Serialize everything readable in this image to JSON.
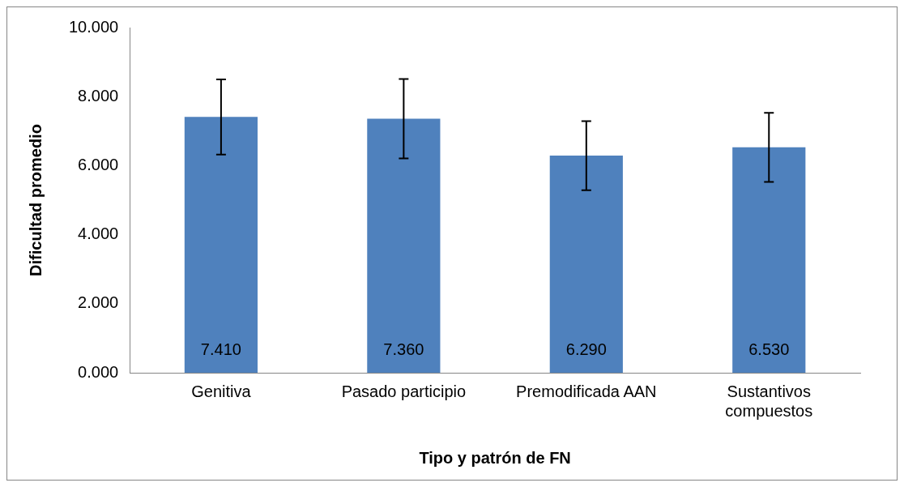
{
  "chart_data": {
    "type": "bar",
    "xlabel": "Tipo y patrón de FN",
    "ylabel": "Dificultad promedio",
    "categories": [
      "Genitiva",
      "Pasado participio",
      "Premodificada AAN",
      "Sustantivos compuestos"
    ],
    "values": [
      7.41,
      7.36,
      6.29,
      6.53
    ],
    "value_labels": [
      "7.410",
      "7.360",
      "6.290",
      "6.530"
    ],
    "errors": [
      1.09,
      1.15,
      1.0,
      1.0
    ],
    "color": "#4f81bd",
    "ylim": [
      0,
      10
    ],
    "yticks": [
      {
        "value": 0,
        "label": "0.000"
      },
      {
        "value": 2,
        "label": "2.000"
      },
      {
        "value": 4,
        "label": "4.000"
      },
      {
        "value": 6,
        "label": "6.000"
      },
      {
        "value": 8,
        "label": "8.000"
      },
      {
        "value": 10,
        "label": "10.000"
      }
    ],
    "grid": false,
    "legend": false
  }
}
